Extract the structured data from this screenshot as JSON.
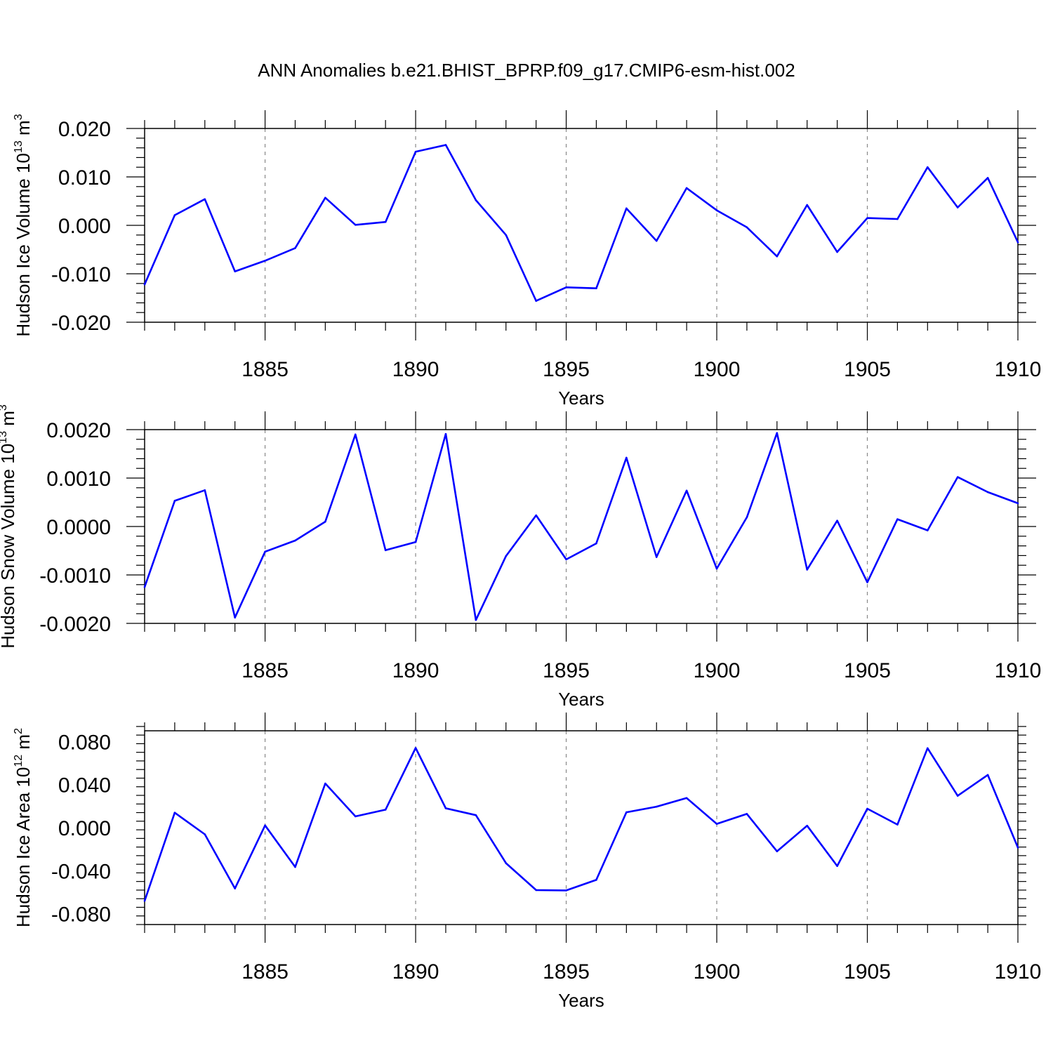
{
  "title": "ANN Anomalies b.e21.BHIST_BPRP.f09_g17.CMIP6-esm-hist.002",
  "colors": {
    "line": "#0000ff",
    "axis": "#000000",
    "grid": "#888888"
  },
  "chart_data": [
    {
      "type": "line",
      "title": "ANN Anomalies b.e21.BHIST_BPRP.f09_g17.CMIP6-esm-hist.002",
      "xlabel": "Years",
      "ylabel_main": "Hudson Ice Volume 10",
      "ylabel_exp": "13",
      "ylabel_unit": "m",
      "ylabel_unit_exp": "3",
      "xlim": [
        1881,
        1910
      ],
      "ylim": [
        -0.02,
        0.02
      ],
      "yticks": [
        0.02,
        0.01,
        0.0,
        -0.01,
        -0.02
      ],
      "ytick_labels": [
        "0.020",
        "0.010",
        "0.000",
        "-0.010",
        "-0.020"
      ],
      "xticks": [
        1885,
        1890,
        1895,
        1900,
        1905,
        1910
      ],
      "xtick_labels": [
        "1885",
        "1890",
        "1895",
        "1900",
        "1905",
        "1910"
      ],
      "grid": "vertical dashed at major x ticks",
      "x": [
        1881,
        1882,
        1883,
        1884,
        1885,
        1886,
        1887,
        1888,
        1889,
        1890,
        1891,
        1892,
        1893,
        1894,
        1895,
        1896,
        1897,
        1898,
        1899,
        1900,
        1901,
        1902,
        1903,
        1904,
        1905,
        1906,
        1907,
        1908,
        1909,
        1910
      ],
      "values": [
        -0.0122,
        0.0021,
        0.0054,
        -0.0095,
        -0.0073,
        -0.0047,
        0.0057,
        0.0001,
        0.0007,
        0.0152,
        0.0166,
        0.0052,
        -0.002,
        -0.0156,
        -0.0128,
        -0.013,
        0.0035,
        -0.0032,
        0.0077,
        0.0031,
        -0.0004,
        -0.0064,
        0.0042,
        -0.0055,
        0.0015,
        0.0013,
        0.012,
        0.0037,
        0.0098,
        -0.0035
      ]
    },
    {
      "type": "line",
      "xlabel": "Years",
      "ylabel_main": "Hudson Snow Volume 10",
      "ylabel_exp": "13",
      "ylabel_unit": "m",
      "ylabel_unit_exp": "3",
      "xlim": [
        1881,
        1910
      ],
      "ylim": [
        -0.002,
        0.002
      ],
      "yticks": [
        0.002,
        0.001,
        0.0,
        -0.001,
        -0.002
      ],
      "ytick_labels": [
        "0.0020",
        "0.0010",
        "0.0000",
        "-0.0010",
        "-0.0020"
      ],
      "xticks": [
        1885,
        1890,
        1895,
        1900,
        1905,
        1910
      ],
      "xtick_labels": [
        "1885",
        "1890",
        "1895",
        "1900",
        "1905",
        "1910"
      ],
      "grid": "vertical dashed at major x ticks",
      "x": [
        1881,
        1882,
        1883,
        1884,
        1885,
        1886,
        1887,
        1888,
        1889,
        1890,
        1891,
        1892,
        1893,
        1894,
        1895,
        1896,
        1897,
        1898,
        1899,
        1900,
        1901,
        1902,
        1903,
        1904,
        1905,
        1906,
        1907,
        1908,
        1909,
        1910
      ],
      "values": [
        -0.00125,
        0.00053,
        0.00075,
        -0.00188,
        -0.00052,
        -0.00029,
        0.0001,
        0.0019,
        -0.00049,
        -0.00032,
        0.00191,
        -0.00193,
        -0.00061,
        0.00023,
        -0.00068,
        -0.00035,
        0.00142,
        -0.00063,
        0.00074,
        -0.00087,
        0.00019,
        0.00193,
        -0.00089,
        0.00012,
        -0.00115,
        0.00015,
        -8e-05,
        0.00102,
        0.00071,
        0.00048
      ]
    },
    {
      "type": "line",
      "xlabel": "Years",
      "ylabel_main": "Hudson Ice Area 10",
      "ylabel_exp": "12",
      "ylabel_unit": "m",
      "ylabel_unit_exp": "2",
      "xlim": [
        1881,
        1910
      ],
      "ylim": [
        -0.09,
        0.09
      ],
      "yticks": [
        0.08,
        0.04,
        0.0,
        -0.04,
        -0.08
      ],
      "ytick_labels": [
        "0.080",
        "0.040",
        "0.000",
        "-0.040",
        "-0.080"
      ],
      "xticks": [
        1885,
        1890,
        1895,
        1900,
        1905,
        1910
      ],
      "xtick_labels": [
        "1885",
        "1890",
        "1895",
        "1900",
        "1905",
        "1910"
      ],
      "grid": "vertical dashed at major x ticks",
      "x": [
        1881,
        1882,
        1883,
        1884,
        1885,
        1886,
        1887,
        1888,
        1889,
        1890,
        1891,
        1892,
        1893,
        1894,
        1895,
        1896,
        1897,
        1898,
        1899,
        1900,
        1901,
        1902,
        1903,
        1904,
        1905,
        1906,
        1907,
        1908,
        1909,
        1910
      ],
      "values": [
        -0.068,
        0.0139,
        -0.0062,
        -0.0565,
        0.0021,
        -0.0365,
        0.041,
        0.0105,
        0.0167,
        0.074,
        0.018,
        0.0116,
        -0.033,
        -0.058,
        -0.0583,
        -0.0485,
        0.0143,
        0.0195,
        0.0275,
        0.0035,
        0.0128,
        -0.022,
        0.0018,
        -0.0356,
        0.0176,
        0.0029,
        0.0738,
        0.0296,
        0.049,
        -0.0185
      ]
    }
  ]
}
